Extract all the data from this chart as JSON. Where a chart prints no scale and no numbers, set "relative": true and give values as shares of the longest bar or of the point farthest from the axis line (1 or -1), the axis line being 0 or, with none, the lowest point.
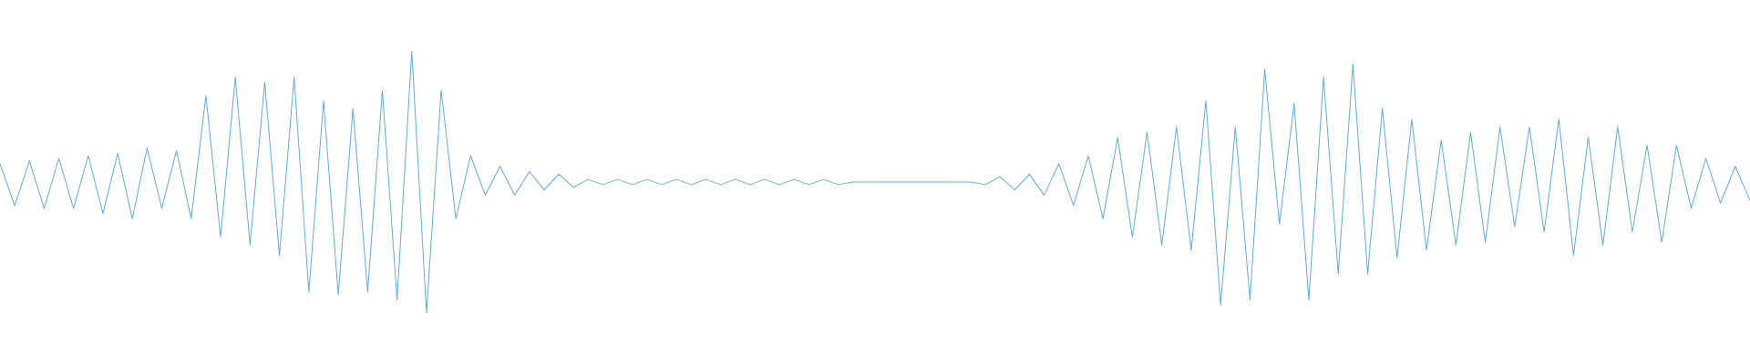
{
  "chart_data": {
    "type": "line",
    "relative": true,
    "categories": [
      null,
      null,
      null,
      null,
      null,
      null,
      null,
      null,
      null,
      null,
      null,
      null,
      null,
      null,
      null,
      null,
      null,
      null,
      null,
      null,
      null,
      null,
      null,
      null,
      null,
      null,
      null,
      null,
      null,
      null,
      null,
      null,
      null,
      null,
      null,
      null,
      null,
      null,
      null,
      null,
      null,
      null,
      null,
      null,
      null,
      null,
      null,
      null,
      null,
      null,
      null,
      null,
      null,
      null,
      null,
      null,
      null,
      null,
      null,
      null,
      null,
      null,
      null,
      null,
      null,
      null,
      null,
      null,
      null,
      null,
      null,
      null,
      null,
      null,
      null,
      null,
      null,
      null,
      null,
      null,
      null,
      null,
      null,
      null,
      null,
      null,
      null,
      null,
      null,
      null,
      null,
      null,
      null,
      null,
      null,
      null,
      null,
      null,
      null,
      null,
      null,
      null,
      null,
      null,
      null,
      null,
      null,
      null,
      null,
      null,
      null,
      null,
      null,
      null,
      null,
      null,
      null,
      null,
      null,
      null
    ],
    "series": [
      {
        "color": "#5dabe2",
        "values": [
          0.57,
          0.41,
          0.58,
          0.4,
          0.59,
          0.4,
          0.6,
          0.38,
          0.61,
          0.36,
          0.63,
          0.4,
          0.62,
          0.36,
          0.83,
          0.29,
          0.9,
          0.26,
          0.88,
          0.22,
          0.9,
          0.08,
          0.81,
          0.07,
          0.78,
          0.08,
          0.85,
          0.05,
          1.0,
          0,
          0.85,
          0.36,
          0.6,
          0.45,
          0.56,
          0.45,
          0.54,
          0.47,
          0.53,
          0.48,
          0.51,
          0.49,
          0.51,
          0.49,
          0.51,
          0.49,
          0.51,
          0.49,
          0.51,
          0.49,
          0.51,
          0.49,
          0.51,
          0.49,
          0.51,
          0.49,
          0.51,
          0.49,
          0.5,
          0.5,
          0.5,
          0.5,
          0.5,
          0.5,
          0.5,
          0.5,
          0.5,
          0.49,
          0.52,
          0.47,
          0.53,
          0.45,
          0.57,
          0.41,
          0.6,
          0.36,
          0.67,
          0.29,
          0.69,
          0.26,
          0.71,
          0.24,
          0.81,
          0.03,
          0.71,
          0.05,
          0.93,
          0.34,
          0.8,
          0.05,
          0.9,
          0.15,
          0.95,
          0.15,
          0.78,
          0.21,
          0.74,
          0.24,
          0.66,
          0.26,
          0.69,
          0.27,
          0.71,
          0.33,
          0.71,
          0.31,
          0.74,
          0.22,
          0.67,
          0.26,
          0.71,
          0.31,
          0.64,
          0.27,
          0.64,
          0.4,
          0.59,
          0.42,
          0.56,
          0.43
        ]
      }
    ]
  }
}
